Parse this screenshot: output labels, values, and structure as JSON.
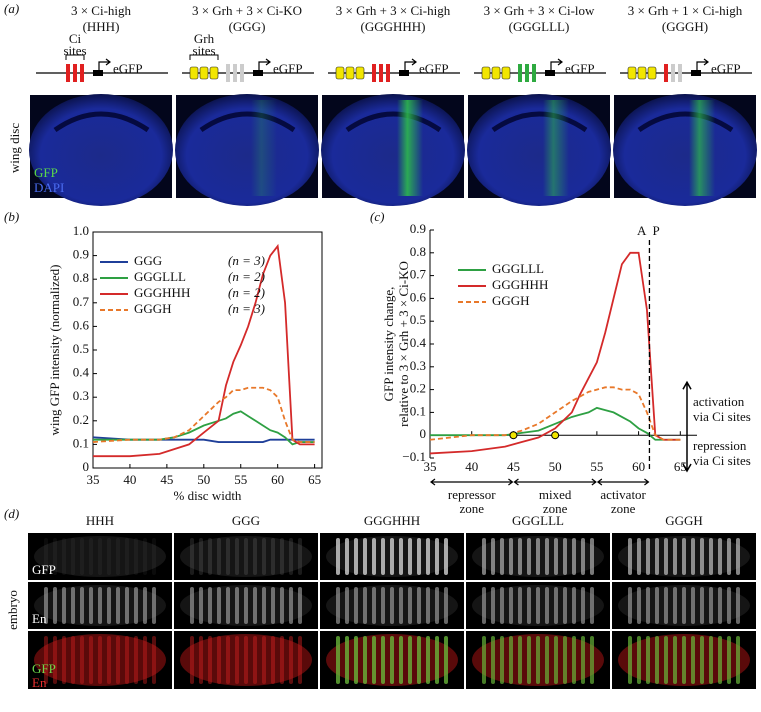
{
  "panel_a": {
    "label": "(a)",
    "side_label": "wing disc",
    "image_labels": [
      "GFP",
      "DAPI"
    ],
    "constructs": [
      {
        "title": "3 × Ci-high",
        "code": "(HHH)",
        "reporter": "eGFP",
        "bracket_label": [
          "Ci",
          "sites"
        ]
      },
      {
        "title": "3 × Grh + 3 × Ci-KO",
        "code": "(GGG)",
        "reporter": "eGFP",
        "bracket_label": [
          "Grh",
          "sites"
        ]
      },
      {
        "title": "3 × Grh + 3 × Ci-high",
        "code": "(GGGHHH)",
        "reporter": "eGFP"
      },
      {
        "title": "3 × Grh + 3 × Ci-low",
        "code": "(GGGLLL)",
        "reporter": "eGFP"
      },
      {
        "title": "3 × Grh + 1 × Ci-high",
        "code": "(GGGH)",
        "reporter": "eGFP"
      }
    ]
  },
  "chart_data": [
    {
      "type": "line",
      "panel_label": "(b)",
      "ylabel": "wing GFP intensity (normalized)",
      "xlabel": "% disc width",
      "x": [
        35,
        40,
        44,
        46,
        48,
        50,
        52,
        53,
        54,
        55,
        56,
        57,
        58,
        59,
        60,
        61,
        62,
        63,
        65
      ],
      "xlim": [
        35,
        66
      ],
      "ylim": [
        0,
        1
      ],
      "xticks": [
        35,
        40,
        45,
        50,
        55,
        60,
        65
      ],
      "yticks": [
        0,
        0.1,
        0.2,
        0.3,
        0.4,
        0.5,
        0.6,
        0.7,
        0.8,
        0.9,
        {
          "value": 1,
          "label": "1.0"
        }
      ],
      "series": [
        {
          "name": "GGG",
          "note": "(n = 3)",
          "color": "#1f3f99",
          "values": [
            0.13,
            0.12,
            0.12,
            0.12,
            0.12,
            0.12,
            0.11,
            0.11,
            0.11,
            0.11,
            0.11,
            0.11,
            0.11,
            0.12,
            0.12,
            0.12,
            0.12,
            0.12,
            0.12
          ]
        },
        {
          "name": "GGGLLL",
          "note": "(n = 2)",
          "color": "#2ea043",
          "values": [
            0.12,
            0.12,
            0.12,
            0.13,
            0.15,
            0.18,
            0.2,
            0.21,
            0.23,
            0.24,
            0.22,
            0.2,
            0.18,
            0.16,
            0.15,
            0.13,
            0.1,
            0.11,
            0.11
          ]
        },
        {
          "name": "GGGHHH",
          "note": "(n = 2)",
          "color": "#d42a2a",
          "values": [
            0.05,
            0.05,
            0.06,
            0.08,
            0.1,
            0.15,
            0.2,
            0.35,
            0.45,
            0.52,
            0.6,
            0.7,
            0.82,
            0.9,
            0.94,
            0.7,
            0.12,
            0.1,
            0.1
          ]
        },
        {
          "name": "GGGH",
          "note": "(n = 3)",
          "color": "#e8782a",
          "dashed": true,
          "values": [
            0.11,
            0.12,
            0.12,
            0.13,
            0.16,
            0.22,
            0.28,
            0.3,
            0.33,
            0.33,
            0.34,
            0.34,
            0.34,
            0.33,
            0.3,
            0.2,
            0.12,
            0.11,
            0.11
          ]
        }
      ]
    },
    {
      "type": "line",
      "panel_label": "(c)",
      "ylabel": [
        "GFP intensity change,",
        "relative to 3 × Grh + 3 × Ci-KO"
      ],
      "x": [
        35,
        40,
        44,
        46,
        48,
        50,
        52,
        53,
        54,
        55,
        56,
        57,
        58,
        59,
        60,
        61,
        62,
        63,
        65
      ],
      "xlim": [
        35,
        67
      ],
      "ylim": [
        -0.1,
        0.9
      ],
      "xticks": [
        35,
        40,
        45,
        50,
        55,
        60,
        65
      ],
      "yticks": [
        {
          "value": -0.1,
          "label": "−0.1"
        },
        0,
        0.1,
        0.2,
        0.3,
        0.4,
        0.5,
        0.6,
        0.7,
        0.8,
        0.9
      ],
      "series": [
        {
          "name": "GGGLLL",
          "color": "#2ea043",
          "values": [
            0,
            0,
            0,
            0.01,
            0.02,
            0.05,
            0.08,
            0.09,
            0.1,
            0.12,
            0.11,
            0.1,
            0.08,
            0.06,
            0.03,
            0.01,
            -0.02,
            -0.02,
            -0.02
          ]
        },
        {
          "name": "GGGHHH",
          "color": "#d42a2a",
          "values": [
            -0.08,
            -0.07,
            -0.05,
            -0.03,
            -0.01,
            0.03,
            0.1,
            0.18,
            0.25,
            0.32,
            0.45,
            0.6,
            0.75,
            0.8,
            0.8,
            0.55,
            0,
            -0.02,
            -0.02
          ]
        },
        {
          "name": "GGGH",
          "color": "#e8782a",
          "dashed": true,
          "values": [
            -0.02,
            0,
            0,
            0.02,
            0.05,
            0.1,
            0.15,
            0.17,
            0.19,
            0.2,
            0.21,
            0.21,
            0.2,
            0.2,
            0.18,
            0.1,
            0,
            -0.02,
            -0.02
          ]
        }
      ],
      "boundary": {
        "x": 61.3,
        "labels": [
          "A",
          "P"
        ]
      },
      "crossings": [
        45,
        50
      ],
      "zones": [
        {
          "label": [
            "repressor",
            "zone"
          ],
          "range": [
            35,
            45
          ]
        },
        {
          "label": [
            "mixed",
            "zone"
          ],
          "range": [
            45,
            55
          ]
        },
        {
          "label": [
            "activator",
            "zone"
          ],
          "range": [
            55,
            61.3
          ]
        }
      ],
      "arrow_labels": [
        [
          "activation",
          "via Ci sites"
        ],
        [
          "repression",
          "via Ci sites"
        ]
      ]
    }
  ],
  "panel_d": {
    "label": "(d)",
    "side_label": "embryo",
    "columns": [
      "HHH",
      "GGG",
      "GGGHHH",
      "GGGLLL",
      "GGGH"
    ],
    "row_labels": [
      "GFP",
      "En"
    ],
    "merge_labels": [
      "GFP",
      "En"
    ]
  }
}
